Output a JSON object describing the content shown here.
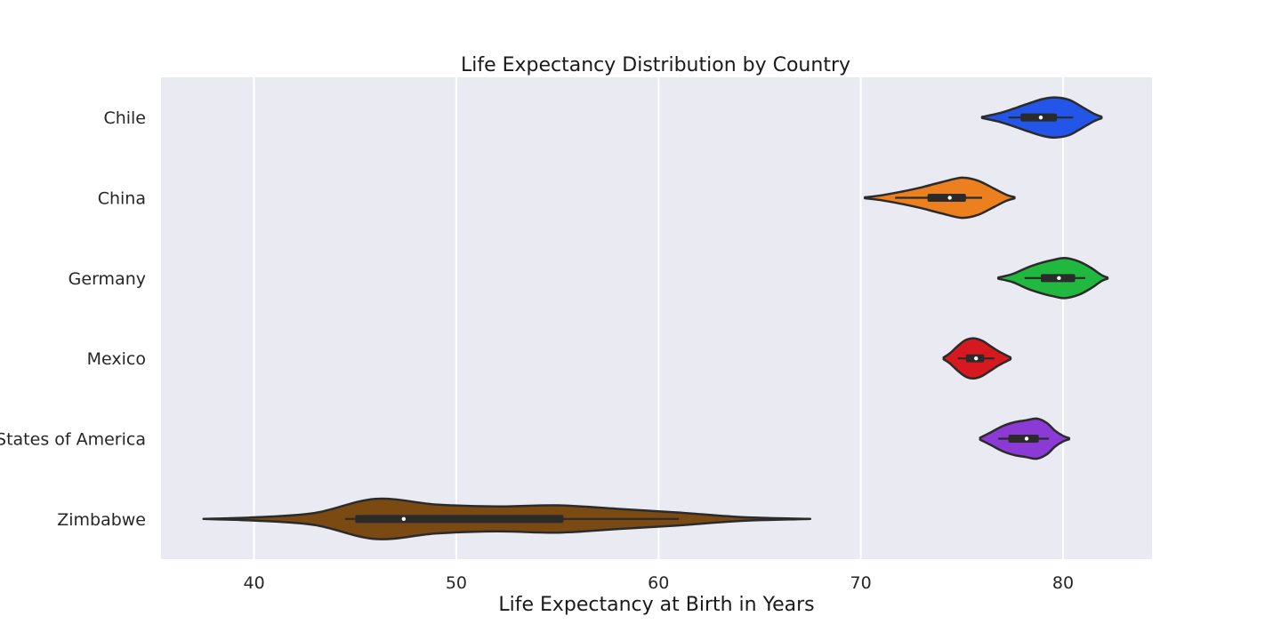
{
  "chart_data": {
    "type": "violin",
    "title": "Life Expectancy Distribution by Country",
    "xlabel": "Life Expectancy at Birth in Years",
    "ylabel": "",
    "orientation": "horizontal",
    "xlim": [
      35.4,
      84.4
    ],
    "xticks": [
      40,
      50,
      60,
      70,
      80
    ],
    "grid": true,
    "background": "#eaeaf2",
    "categories": [
      "Chile",
      "China",
      "Germany",
      "Mexico",
      "United States of America",
      "Zimbabwe"
    ],
    "series": [
      {
        "name": "Chile",
        "color": "#2355e8",
        "min": 76.0,
        "max": 81.9,
        "q1": 77.9,
        "median": 78.9,
        "q3": 79.7,
        "whisker_low": 77.3,
        "whisker_high": 80.5,
        "mode": 79.6,
        "density": [
          [
            76.0,
            0.03
          ],
          [
            76.8,
            0.2
          ],
          [
            77.5,
            0.42
          ],
          [
            78.3,
            0.7
          ],
          [
            79.0,
            0.92
          ],
          [
            79.6,
            1.0
          ],
          [
            80.3,
            0.88
          ],
          [
            80.9,
            0.55
          ],
          [
            81.5,
            0.2
          ],
          [
            81.9,
            0.04
          ]
        ]
      },
      {
        "name": "China",
        "color": "#ec7f1e",
        "min": 70.2,
        "max": 77.6,
        "q1": 73.3,
        "median": 74.4,
        "q3": 75.2,
        "whisker_low": 71.7,
        "whisker_high": 76.0,
        "mode": 75.0,
        "density": [
          [
            70.2,
            0.02
          ],
          [
            71.0,
            0.12
          ],
          [
            72.0,
            0.3
          ],
          [
            73.0,
            0.52
          ],
          [
            74.0,
            0.78
          ],
          [
            75.0,
            1.0
          ],
          [
            75.8,
            0.85
          ],
          [
            76.6,
            0.45
          ],
          [
            77.2,
            0.15
          ],
          [
            77.6,
            0.03
          ]
        ]
      },
      {
        "name": "Germany",
        "color": "#21b840",
        "min": 76.8,
        "max": 82.2,
        "q1": 78.9,
        "median": 79.8,
        "q3": 80.6,
        "whisker_low": 78.1,
        "whisker_high": 81.1,
        "mode": 80.1,
        "density": [
          [
            76.8,
            0.03
          ],
          [
            77.5,
            0.2
          ],
          [
            78.3,
            0.55
          ],
          [
            79.0,
            0.78
          ],
          [
            79.5,
            0.9
          ],
          [
            80.1,
            1.0
          ],
          [
            80.8,
            0.82
          ],
          [
            81.4,
            0.5
          ],
          [
            81.9,
            0.15
          ],
          [
            82.2,
            0.03
          ]
        ]
      },
      {
        "name": "Mexico",
        "color": "#d6191f",
        "min": 74.1,
        "max": 77.4,
        "q1": 75.2,
        "median": 75.7,
        "q3": 76.1,
        "whisker_low": 74.8,
        "whisker_high": 76.6,
        "mode": 75.6,
        "density": [
          [
            74.1,
            0.05
          ],
          [
            74.4,
            0.25
          ],
          [
            74.8,
            0.62
          ],
          [
            75.2,
            0.92
          ],
          [
            75.6,
            1.0
          ],
          [
            76.0,
            0.88
          ],
          [
            76.4,
            0.62
          ],
          [
            76.8,
            0.36
          ],
          [
            77.1,
            0.2
          ],
          [
            77.4,
            0.05
          ]
        ]
      },
      {
        "name": "United States of America",
        "color": "#8b3ad6",
        "min": 75.9,
        "max": 80.3,
        "q1": 77.3,
        "median": 78.2,
        "q3": 78.8,
        "whisker_low": 76.8,
        "whisker_high": 79.3,
        "mode": 78.7,
        "density": [
          [
            75.9,
            0.05
          ],
          [
            76.4,
            0.3
          ],
          [
            77.0,
            0.62
          ],
          [
            77.6,
            0.82
          ],
          [
            78.2,
            0.92
          ],
          [
            78.7,
            1.0
          ],
          [
            79.2,
            0.78
          ],
          [
            79.6,
            0.4
          ],
          [
            80.0,
            0.14
          ],
          [
            80.3,
            0.03
          ]
        ]
      },
      {
        "name": "Zimbabwe",
        "color": "#7a4a12",
        "min": 37.5,
        "max": 67.5,
        "q1": 45.0,
        "median": 47.4,
        "q3": 55.3,
        "whisker_low": 44.5,
        "whisker_high": 61.0,
        "mode": 46.0,
        "density": [
          [
            37.5,
            0.0
          ],
          [
            40.0,
            0.08
          ],
          [
            43.0,
            0.3
          ],
          [
            46.0,
            1.0
          ],
          [
            49.0,
            0.72
          ],
          [
            52.0,
            0.62
          ],
          [
            55.0,
            0.68
          ],
          [
            58.0,
            0.5
          ],
          [
            61.0,
            0.32
          ],
          [
            64.0,
            0.1
          ],
          [
            67.5,
            0.0
          ]
        ]
      }
    ]
  }
}
